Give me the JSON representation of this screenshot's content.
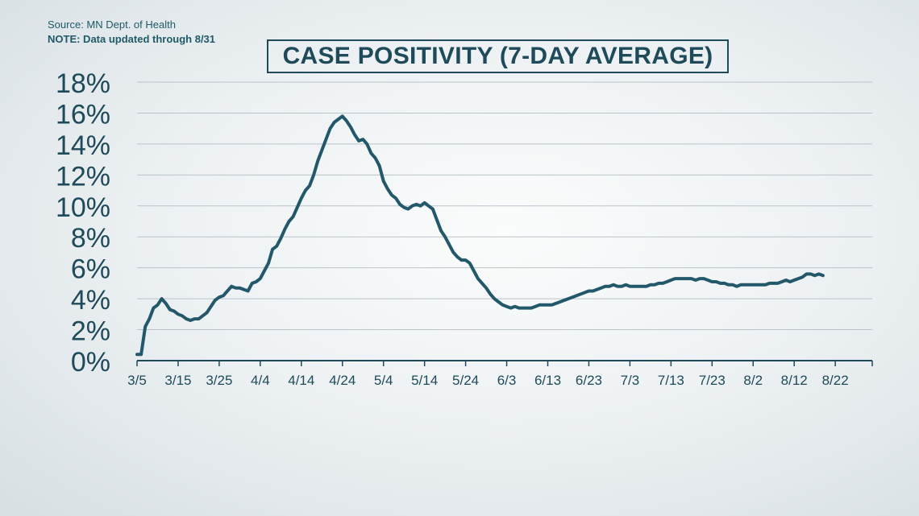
{
  "source": "Source: MN Dept. of Health",
  "note": "NOTE: Data updated through 8/31",
  "colors": {
    "line": "#22586a",
    "text": "#1e4a59",
    "grid": "#b9c4c9"
  },
  "chart_data": {
    "type": "line",
    "title": "CASE POSITIVITY (7-DAY AVERAGE)",
    "xlabel": "",
    "ylabel": "",
    "ylim": [
      0,
      18
    ],
    "yticks": [
      0,
      2,
      4,
      6,
      8,
      10,
      12,
      14,
      16,
      18
    ],
    "ytick_labels": [
      "0%",
      "2%",
      "4%",
      "6%",
      "8%",
      "10%",
      "12%",
      "14%",
      "16%",
      "18%"
    ],
    "xtick_labels": [
      "3/5",
      "3/15",
      "3/25",
      "4/4",
      "4/14",
      "4/24",
      "5/4",
      "5/14",
      "5/24",
      "6/3",
      "6/13",
      "6/23",
      "7/3",
      "7/13",
      "7/23",
      "8/2",
      "8/12",
      "8/22"
    ],
    "x_start": "3/5",
    "x_end": "8/31",
    "grid": true,
    "series": [
      {
        "points": [
          [
            "3/5",
            0.4
          ],
          [
            "3/6",
            0.4
          ],
          [
            "3/7",
            2.2
          ],
          [
            "3/8",
            2.7
          ],
          [
            "3/9",
            3.4
          ],
          [
            "3/10",
            3.6
          ],
          [
            "3/11",
            4.0
          ],
          [
            "3/12",
            3.7
          ],
          [
            "3/13",
            3.3
          ],
          [
            "3/14",
            3.2
          ],
          [
            "3/15",
            3.0
          ],
          [
            "3/16",
            2.9
          ],
          [
            "3/17",
            2.7
          ],
          [
            "3/18",
            2.6
          ],
          [
            "3/19",
            2.7
          ],
          [
            "3/20",
            2.7
          ],
          [
            "3/21",
            2.9
          ],
          [
            "3/22",
            3.1
          ],
          [
            "3/23",
            3.5
          ],
          [
            "3/24",
            3.9
          ],
          [
            "3/25",
            4.1
          ],
          [
            "3/26",
            4.2
          ],
          [
            "3/27",
            4.5
          ],
          [
            "3/28",
            4.8
          ],
          [
            "3/29",
            4.7
          ],
          [
            "3/30",
            4.7
          ],
          [
            "3/31",
            4.6
          ],
          [
            "4/1",
            4.5
          ],
          [
            "4/2",
            5.0
          ],
          [
            "4/3",
            5.1
          ],
          [
            "4/4",
            5.3
          ],
          [
            "4/5",
            5.8
          ],
          [
            "4/6",
            6.3
          ],
          [
            "4/7",
            7.2
          ],
          [
            "4/8",
            7.4
          ],
          [
            "4/9",
            7.9
          ],
          [
            "4/10",
            8.5
          ],
          [
            "4/11",
            9.0
          ],
          [
            "4/12",
            9.3
          ],
          [
            "4/13",
            9.9
          ],
          [
            "4/14",
            10.5
          ],
          [
            "4/15",
            11.0
          ],
          [
            "4/16",
            11.3
          ],
          [
            "4/17",
            12.0
          ],
          [
            "4/18",
            12.9
          ],
          [
            "4/19",
            13.6
          ],
          [
            "4/20",
            14.3
          ],
          [
            "4/21",
            15.0
          ],
          [
            "4/22",
            15.4
          ],
          [
            "4/23",
            15.6
          ],
          [
            "4/24",
            15.8
          ],
          [
            "4/25",
            15.5
          ],
          [
            "4/26",
            15.1
          ],
          [
            "4/27",
            14.6
          ],
          [
            "4/28",
            14.2
          ],
          [
            "4/29",
            14.3
          ],
          [
            "4/30",
            14.0
          ],
          [
            "5/1",
            13.4
          ],
          [
            "5/2",
            13.1
          ],
          [
            "5/3",
            12.6
          ],
          [
            "5/4",
            11.6
          ],
          [
            "5/5",
            11.1
          ],
          [
            "5/6",
            10.7
          ],
          [
            "5/7",
            10.5
          ],
          [
            "5/8",
            10.1
          ],
          [
            "5/9",
            9.9
          ],
          [
            "5/10",
            9.8
          ],
          [
            "5/11",
            10.0
          ],
          [
            "5/12",
            10.1
          ],
          [
            "5/13",
            10.0
          ],
          [
            "5/14",
            10.2
          ],
          [
            "5/15",
            10.0
          ],
          [
            "5/16",
            9.8
          ],
          [
            "5/17",
            9.1
          ],
          [
            "5/18",
            8.4
          ],
          [
            "5/19",
            8.0
          ],
          [
            "5/20",
            7.5
          ],
          [
            "5/21",
            7.0
          ],
          [
            "5/22",
            6.7
          ],
          [
            "5/23",
            6.5
          ],
          [
            "5/24",
            6.5
          ],
          [
            "5/25",
            6.3
          ],
          [
            "5/26",
            5.8
          ],
          [
            "5/27",
            5.3
          ],
          [
            "5/28",
            5.0
          ],
          [
            "5/29",
            4.7
          ],
          [
            "5/30",
            4.3
          ],
          [
            "5/31",
            4.0
          ],
          [
            "6/1",
            3.8
          ],
          [
            "6/2",
            3.6
          ],
          [
            "6/3",
            3.5
          ],
          [
            "6/4",
            3.4
          ],
          [
            "6/5",
            3.5
          ],
          [
            "6/6",
            3.4
          ],
          [
            "6/7",
            3.4
          ],
          [
            "6/8",
            3.4
          ],
          [
            "6/9",
            3.4
          ],
          [
            "6/10",
            3.5
          ],
          [
            "6/11",
            3.6
          ],
          [
            "6/12",
            3.6
          ],
          [
            "6/13",
            3.6
          ],
          [
            "6/14",
            3.6
          ],
          [
            "6/15",
            3.7
          ],
          [
            "6/16",
            3.8
          ],
          [
            "6/17",
            3.9
          ],
          [
            "6/18",
            4.0
          ],
          [
            "6/19",
            4.1
          ],
          [
            "6/20",
            4.2
          ],
          [
            "6/21",
            4.3
          ],
          [
            "6/22",
            4.4
          ],
          [
            "6/23",
            4.5
          ],
          [
            "6/24",
            4.5
          ],
          [
            "6/25",
            4.6
          ],
          [
            "6/26",
            4.7
          ],
          [
            "6/27",
            4.8
          ],
          [
            "6/28",
            4.8
          ],
          [
            "6/29",
            4.9
          ],
          [
            "6/30",
            4.8
          ],
          [
            "7/1",
            4.8
          ],
          [
            "7/2",
            4.9
          ],
          [
            "7/3",
            4.8
          ],
          [
            "7/4",
            4.8
          ],
          [
            "7/5",
            4.8
          ],
          [
            "7/6",
            4.8
          ],
          [
            "7/7",
            4.8
          ],
          [
            "7/8",
            4.9
          ],
          [
            "7/9",
            4.9
          ],
          [
            "7/10",
            5.0
          ],
          [
            "7/11",
            5.0
          ],
          [
            "7/12",
            5.1
          ],
          [
            "7/13",
            5.2
          ],
          [
            "7/14",
            5.3
          ],
          [
            "7/15",
            5.3
          ],
          [
            "7/16",
            5.3
          ],
          [
            "7/17",
            5.3
          ],
          [
            "7/18",
            5.3
          ],
          [
            "7/19",
            5.2
          ],
          [
            "7/20",
            5.3
          ],
          [
            "7/21",
            5.3
          ],
          [
            "7/22",
            5.2
          ],
          [
            "7/23",
            5.1
          ],
          [
            "7/24",
            5.1
          ],
          [
            "7/25",
            5.0
          ],
          [
            "7/26",
            5.0
          ],
          [
            "7/27",
            4.9
          ],
          [
            "7/28",
            4.9
          ],
          [
            "7/29",
            4.8
          ],
          [
            "7/30",
            4.9
          ],
          [
            "7/31",
            4.9
          ],
          [
            "8/1",
            4.9
          ],
          [
            "8/2",
            4.9
          ],
          [
            "8/3",
            4.9
          ],
          [
            "8/4",
            4.9
          ],
          [
            "8/5",
            4.9
          ],
          [
            "8/6",
            5.0
          ],
          [
            "8/7",
            5.0
          ],
          [
            "8/8",
            5.0
          ],
          [
            "8/9",
            5.1
          ],
          [
            "8/10",
            5.2
          ],
          [
            "8/11",
            5.1
          ],
          [
            "8/12",
            5.2
          ],
          [
            "8/13",
            5.3
          ],
          [
            "8/14",
            5.4
          ],
          [
            "8/15",
            5.6
          ],
          [
            "8/16",
            5.6
          ],
          [
            "8/17",
            5.5
          ],
          [
            "8/18",
            5.6
          ],
          [
            "8/19",
            5.5
          ]
        ]
      }
    ]
  }
}
